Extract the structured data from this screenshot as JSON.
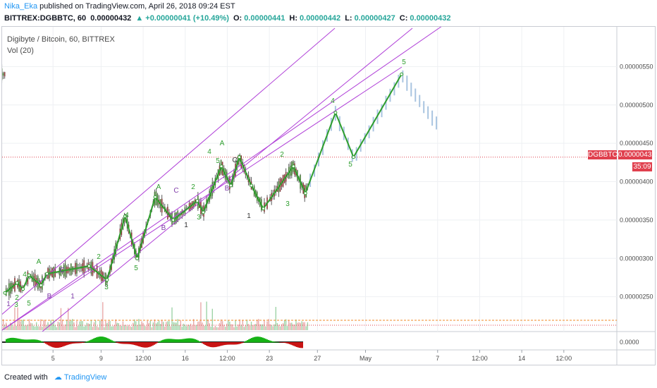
{
  "header": {
    "author": "Nika_Eka",
    "published": "published on TradingView.com, April 26, 2018 09:24 EST",
    "symbol": "BITTREX:DGBBTC, 60",
    "last": "0.00000432",
    "change": "+0.00000041 (+10.49%)",
    "open_label": "O:",
    "open": "0.00000441",
    "high_label": "H:",
    "high": "0.00000442",
    "low_label": "L:",
    "low": "0.00000427",
    "close_label": "C:",
    "close": "0.00000432"
  },
  "chart_title": "Digibyte / Bitcoin, 60, BITTREX",
  "volume_label": "Vol (20)",
  "price_badge": {
    "symbol": "DGBBTC",
    "price": "0.00000432",
    "countdown": "35:09"
  },
  "footer": {
    "created": "Created with",
    "brand": "TradingView"
  },
  "colors": {
    "wave": "#2e9e2e",
    "channel": "#b040d8",
    "price_line": "#e0404e",
    "candle": "#5a5a5a",
    "projection": "#a9c4e0",
    "indicator_up": "#16b216",
    "indicator_down": "#c81414"
  },
  "chart_data": {
    "type": "line",
    "symbol": "DGBBTC",
    "timeframe": "60",
    "exchange": "BITTREX",
    "y_ticks": [
      "0.00000550",
      "0.00000500",
      "0.00000450",
      "0.00000400",
      "0.00000350",
      "0.00000300",
      "0.00000250"
    ],
    "lower_pane_tick": "0.0000",
    "x_ticks": [
      "5",
      "9",
      "12:00",
      "16",
      "12:00",
      "23",
      "27",
      "May",
      "7",
      "12:00",
      "14",
      "12:00"
    ],
    "current_price": 4.32e-06,
    "wave_labels": [
      "1",
      "2",
      "3",
      "4",
      "5",
      "A",
      "B",
      "C",
      "1",
      "2",
      "3",
      "4",
      "5",
      "A",
      "B",
      "C",
      "1",
      "2",
      "3",
      "4",
      "5",
      "A",
      "B",
      "C",
      "1",
      "2",
      "3",
      "4",
      "5"
    ],
    "wave_path": [
      {
        "x": "Apr 1",
        "y": 2.55e-06
      },
      {
        "x": "Apr 2",
        "y": 2.68e-06
      },
      {
        "x": "Apr 2.5",
        "y": 2.6e-06
      },
      {
        "x": "Apr 3",
        "y": 2.78e-06
      },
      {
        "x": "Apr 4",
        "y": 2.65e-06
      },
      {
        "x": "Apr 4.5",
        "y": 2.8e-06
      },
      {
        "x": "Apr 8",
        "y": 2.9e-06
      },
      {
        "x": "Apr 9.5",
        "y": 2.72e-06
      },
      {
        "x": "Apr 11",
        "y": 3.55e-06
      },
      {
        "x": "Apr 12",
        "y": 3e-06
      },
      {
        "x": "Apr 13.5",
        "y": 3.8e-06
      },
      {
        "x": "Apr 15",
        "y": 3.5e-06
      },
      {
        "x": "Apr 17",
        "y": 3.75e-06
      },
      {
        "x": "Apr 17.5",
        "y": 3.6e-06
      },
      {
        "x": "Apr 19",
        "y": 4.2e-06
      },
      {
        "x": "Apr 19.8",
        "y": 3.95e-06
      },
      {
        "x": "Apr 20.5",
        "y": 4.32e-06
      },
      {
        "x": "Apr 21.5",
        "y": 3.95e-06
      },
      {
        "x": "Apr 22.5",
        "y": 3.65e-06
      },
      {
        "x": "Apr 25",
        "y": 4.2e-06
      },
      {
        "x": "Apr 26",
        "y": 3.85e-06
      },
      {
        "x": "Apr 28.5",
        "y": 4.9e-06
      },
      {
        "x": "Apr 30",
        "y": 4.32e-06
      },
      {
        "x": "May 4",
        "y": 5.4e-06
      }
    ],
    "ylim": [
      2.05e-06,
      5.95e-06
    ]
  }
}
